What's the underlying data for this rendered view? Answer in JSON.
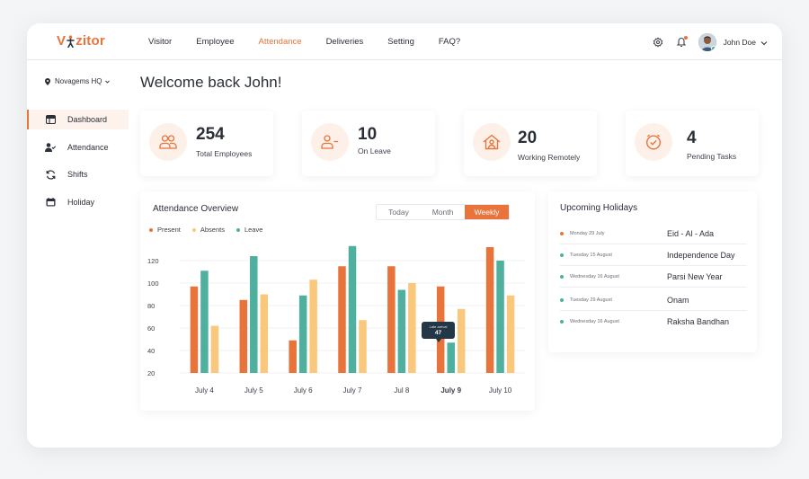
{
  "app": {
    "logo_text": "Vizitor",
    "logo_v": "V",
    "logo_rest": "zitor"
  },
  "nav": {
    "items": [
      {
        "label": "Visitor",
        "active": false
      },
      {
        "label": "Employee",
        "active": false
      },
      {
        "label": "Attendance",
        "active": true
      },
      {
        "label": "Deliveries",
        "active": false
      },
      {
        "label": "Setting",
        "active": false
      },
      {
        "label": "FAQ?",
        "active": false
      }
    ]
  },
  "user": {
    "name": "John Doe"
  },
  "location": {
    "label": "Novagems HQ"
  },
  "sidebar": {
    "items": [
      {
        "label": "Dashboard",
        "icon": "dashboard-icon",
        "active": true
      },
      {
        "label": "Attendance",
        "icon": "user-check-icon",
        "active": false
      },
      {
        "label": "Shifts",
        "icon": "refresh-icon",
        "active": false
      },
      {
        "label": "Holiday",
        "icon": "calendar-icon",
        "active": false
      }
    ]
  },
  "welcome": "Welcome back John!",
  "stats": [
    {
      "value": "254",
      "label": "Total Employees",
      "icon": "users-icon"
    },
    {
      "value": "10",
      "label": "On Leave",
      "icon": "user-minus-icon"
    },
    {
      "value": "20",
      "label": "Working Remotely",
      "icon": "home-user-icon"
    },
    {
      "value": "4",
      "label": "Pending Tasks",
      "icon": "clock-check-icon"
    }
  ],
  "attendance": {
    "title": "Attendance Overview",
    "tabs": [
      {
        "label": "Today",
        "active": false
      },
      {
        "label": "Month",
        "active": false
      },
      {
        "label": "Weekly",
        "active": true
      }
    ],
    "tooltip": {
      "label": "Late arrival",
      "value": "47"
    }
  },
  "chart_data": {
    "type": "bar",
    "categories": [
      "July 4",
      "July 5",
      "July 6",
      "July 7",
      "Jul 8",
      "July 9",
      "July 10"
    ],
    "series": [
      {
        "name": "Present",
        "color": "#e8743b",
        "values": [
          97,
          85,
          49,
          115,
          115,
          97,
          132
        ]
      },
      {
        "name": "Absents",
        "color": "#f9c87c",
        "values": [
          62,
          90,
          103,
          67,
          100,
          77,
          89
        ]
      },
      {
        "name": "Leave",
        "color": "#4fb0a0",
        "values": [
          111,
          124,
          89,
          133,
          94,
          47,
          120
        ]
      }
    ],
    "yticks": [
      "20",
      "40",
      "60",
      "80",
      "100",
      "120"
    ],
    "ylim": [
      20,
      140
    ],
    "highlight_category": "July 9",
    "grid": true,
    "legend": "top-left"
  },
  "holidays": {
    "title": "Upcoming Holidays",
    "items": [
      {
        "date": "Monday 29 July",
        "name": "Eid - Al - Ada",
        "color": "#e8743b"
      },
      {
        "date": "Tuesday 15 August",
        "name": "Independence Day",
        "color": "#4fb0a0"
      },
      {
        "date": "Wednesday 16 August",
        "name": "Parsi New Year",
        "color": "#4fb0a0"
      },
      {
        "date": "Tuesday 29 August",
        "name": "Onam",
        "color": "#4fb0a0"
      },
      {
        "date": "Wednesday 16 August",
        "name": "Raksha Bandhan",
        "color": "#4fb0a0"
      }
    ]
  }
}
